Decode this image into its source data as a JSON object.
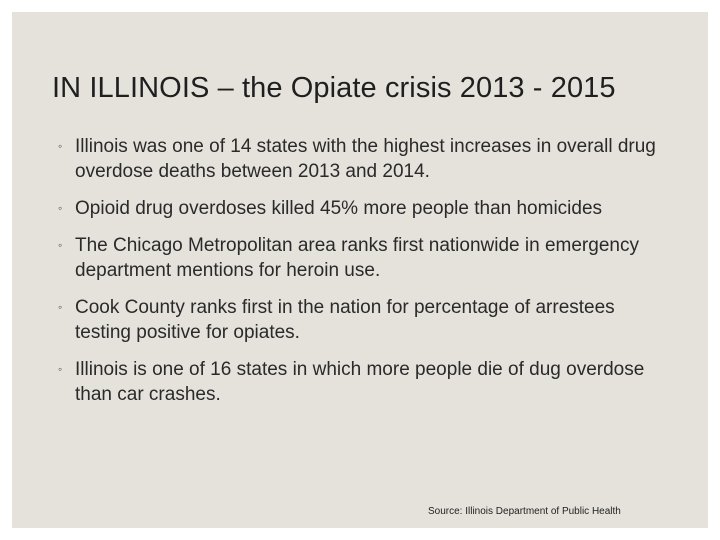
{
  "slide": {
    "title": "IN ILLINOIS – the Opiate crisis 2013 - 2015",
    "bullet_symbol": "◦",
    "bullets": [
      "Illinois was one of 14 states with the highest increases in overall drug overdose deaths between 2013 and 2014.",
      "Opioid drug overdoses killed 45% more people than homicides",
      "The Chicago Metropolitan area ranks first nationwide in emergency department mentions for heroin use.",
      "Cook County ranks first in the nation for percentage of arrestees testing positive for opiates.",
      "Illinois is one of 16 states in which more people die of dug overdose than car crashes."
    ],
    "source": "Source: Illinois Department of Public Health"
  }
}
